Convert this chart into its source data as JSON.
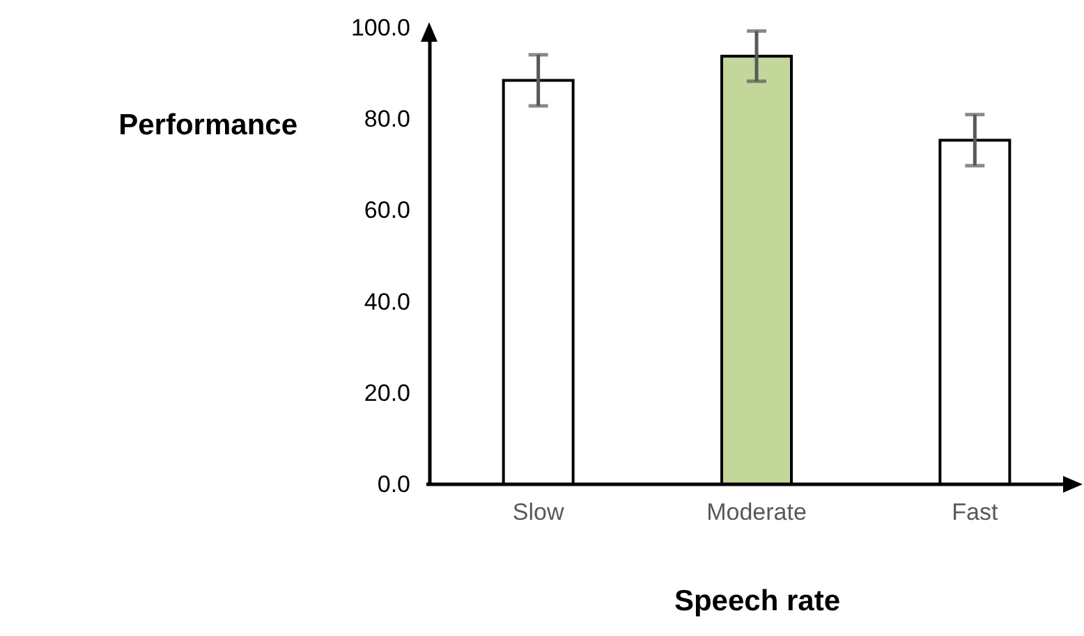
{
  "chart_data": {
    "type": "bar",
    "xlabel": "Speech rate",
    "ylabel": "Performance",
    "categories": [
      "Slow",
      "Moderate",
      "Fast"
    ],
    "values": [
      88.5,
      93.8,
      75.4
    ],
    "colors": [
      "#ffffff",
      "#c4d79b",
      "#ffffff"
    ],
    "errors": [
      5.6,
      5.5,
      5.6
    ],
    "ylim": [
      0,
      100
    ],
    "yticks": [
      {
        "value": 0,
        "label": "0.0"
      },
      {
        "value": 20,
        "label": "20.0"
      },
      {
        "value": 40,
        "label": "40.0"
      },
      {
        "value": 60,
        "label": "60.0"
      },
      {
        "value": 80,
        "label": "80.0"
      },
      {
        "value": 100,
        "label": "100.0"
      }
    ],
    "grid": false
  }
}
